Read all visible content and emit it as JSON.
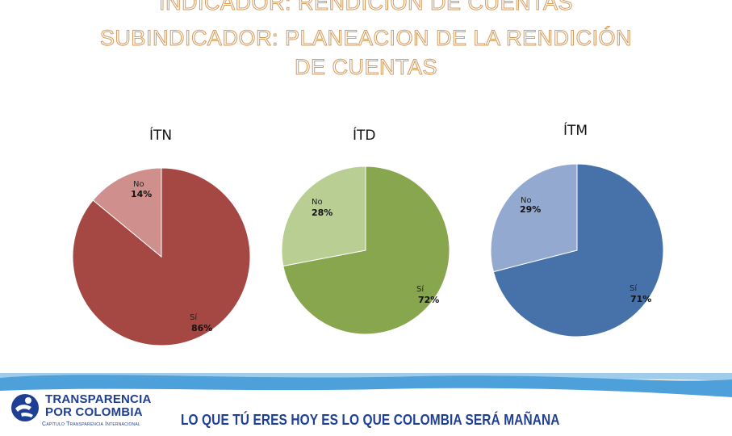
{
  "title_lines": [
    "INDICADOR: RENDICION DE CUENTAS",
    "SUBINDICADOR: PLANEACION DE LA RENDICIÓN",
    "DE CUENTAS"
  ],
  "colors": {
    "title_outline": "#d79a5a",
    "itn_si": "#a54743",
    "itn_no": "#cf8f8c",
    "itd_si": "#88a64d",
    "itd_no": "#b8ce93",
    "itm_si": "#4672a9",
    "itm_no": "#93a9d0",
    "banner_blue": "#1e3f93",
    "banner_light": "#4fa3d9"
  },
  "chart_data": [
    {
      "type": "pie",
      "title": "ÍTN",
      "labels": [
        "Sí",
        "No"
      ],
      "values": [
        86,
        14
      ],
      "value_labels": [
        "86%",
        "14%"
      ]
    },
    {
      "type": "pie",
      "title": "ÍTD",
      "labels": [
        "Sí",
        "No"
      ],
      "values": [
        72,
        28
      ],
      "value_labels": [
        "72%",
        "28%"
      ]
    },
    {
      "type": "pie",
      "title": "ÍTM",
      "labels": [
        "Sí",
        "No"
      ],
      "values": [
        71,
        29
      ],
      "value_labels": [
        "71%",
        "29%"
      ]
    }
  ],
  "banner": {
    "logo_line_1": "TRANSPARENCIA",
    "logo_line_2": "POR COLOMBIA",
    "logo_subtitle": "Capítulo Transparencia Internacional",
    "slogan": "LO QUE TÚ ERES HOY ES LO QUE COLOMBIA SERÁ MAÑANA"
  }
}
